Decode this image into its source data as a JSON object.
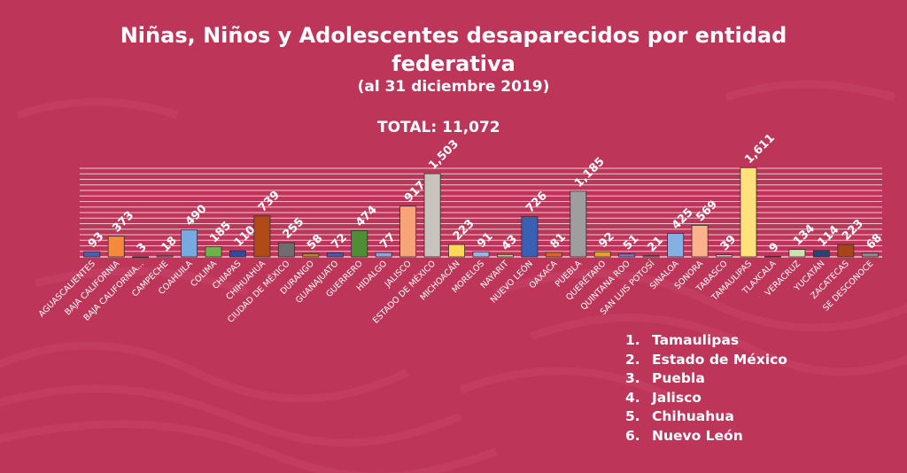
{
  "title": "Niñas, Niños y Adolescentes  desaparecidos por entidad federativa",
  "title_line1": "Niñas, Niños y Adolescentes  desaparecidos por entidad",
  "title_line2": "federativa",
  "subtitle": "(al 31 diciembre 2019)",
  "total_label": "TOTAL: 11,072",
  "colors": {
    "background": "#bd3558",
    "gridline": "#f2c9d4"
  },
  "ranking": [
    {
      "num": "1.",
      "name": "Tamaulipas"
    },
    {
      "num": "2.",
      "name": "Estado de México"
    },
    {
      "num": "3.",
      "name": "Puebla"
    },
    {
      "num": "4.",
      "name": "Jalisco"
    },
    {
      "num": "5.",
      "name": "Chihuahua"
    },
    {
      "num": "6.",
      "name": "Nuevo León"
    }
  ],
  "chart_data": {
    "type": "bar",
    "title": "Niñas, Niños y Adolescentes  desaparecidos por entidad federativa",
    "xlabel": "",
    "ylabel": "",
    "ylim": [
      0,
      1600
    ],
    "grid": true,
    "categories": [
      "AGUASCALIENTES",
      "BAJA CALIFORNIA",
      "BAJA CALIFORNIA...",
      "CAMPECHE",
      "COAHUILA",
      "COLIMA",
      "CHIAPAS",
      "CHIHUAHUA",
      "CIUDAD DE MÉXICO",
      "DURANGO",
      "GUANAJUATO",
      "GUERRERO",
      "HIDALGO",
      "JALISCO",
      "ESTADO DE MÉXICO",
      "MICHOACÁN",
      "MORELOS",
      "NAYARIT",
      "NUEVO LEÓN",
      "OAXACA",
      "PUEBLA",
      "QUERÉTARO",
      "QUINTANA ROO",
      "SAN LUIS POTOSÍ",
      "SINALOA",
      "SONORA",
      "TABASCO",
      "TAMAULIPAS",
      "TLAXCALA",
      "VERACRUZ",
      "YUCATÁN",
      "ZACATECAS",
      "SE DESCONOCE"
    ],
    "values": [
      93,
      373,
      3,
      18,
      490,
      185,
      110,
      739,
      255,
      58,
      72,
      474,
      77,
      917,
      1503,
      223,
      91,
      43,
      726,
      81,
      1185,
      92,
      51,
      21,
      425,
      569,
      39,
      1611,
      9,
      134,
      114,
      223,
      68
    ],
    "value_labels": [
      "93",
      "373",
      "3",
      "18",
      "490",
      "185",
      "110",
      "739",
      "255",
      "58",
      "72",
      "474",
      "77",
      "917",
      "1,503",
      "223",
      "91",
      "43",
      "726",
      "81",
      "1,185",
      "92",
      "51",
      "21",
      "425",
      "569",
      "39",
      "1,611",
      "9",
      "134",
      "114",
      "223",
      "68"
    ],
    "bar_colors": [
      "#4a5fb0",
      "#f58a3c",
      "#9aa0a6",
      "#f2bd23",
      "#78a9e0",
      "#6fb24a",
      "#2d4d9c",
      "#b04a16",
      "#6e6e6e",
      "#c7801a",
      "#3f5ea8",
      "#4e8f35",
      "#8ba6df",
      "#f7a47a",
      "#c9c3be",
      "#ffd75a",
      "#9db3e6",
      "#b6d28a",
      "#3a60b5",
      "#e0602a",
      "#9e9e9e",
      "#e8a22c",
      "#5f86d4",
      "#6aa84f",
      "#85b0e6",
      "#f9b28a",
      "#c8c8c8",
      "#ffe27a",
      "#a9c98a",
      "#cde0b0",
      "#27447a",
      "#a8441a",
      "#8a8a8a"
    ]
  }
}
